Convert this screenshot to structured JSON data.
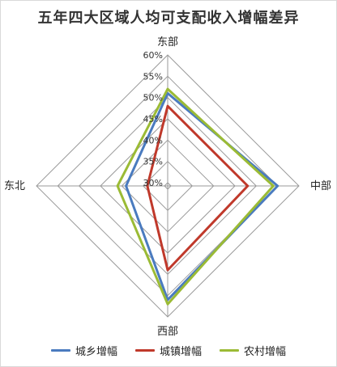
{
  "chart_data": {
    "type": "radar",
    "title": "五年四大区域人均可支配收入增幅差异",
    "axes": [
      "东部",
      "中部",
      "西部",
      "东北"
    ],
    "rmin": 30,
    "rmax": 60,
    "ticks": [
      "30%",
      "35%",
      "40%",
      "45%",
      "50%",
      "55%",
      "60%"
    ],
    "tick_values": [
      30,
      35,
      40,
      45,
      50,
      55,
      60
    ],
    "series": [
      {
        "name": "城乡增幅",
        "color": "#4a7bbf",
        "values": [
          51,
          55,
          56,
          39
        ]
      },
      {
        "name": "城镇增幅",
        "color": "#c0392b",
        "values": [
          48,
          48,
          49,
          34
        ]
      },
      {
        "name": "农村增幅",
        "color": "#9bbb35",
        "values": [
          52,
          54,
          57,
          41
        ]
      }
    ],
    "grid": true,
    "legend_position": "bottom"
  }
}
